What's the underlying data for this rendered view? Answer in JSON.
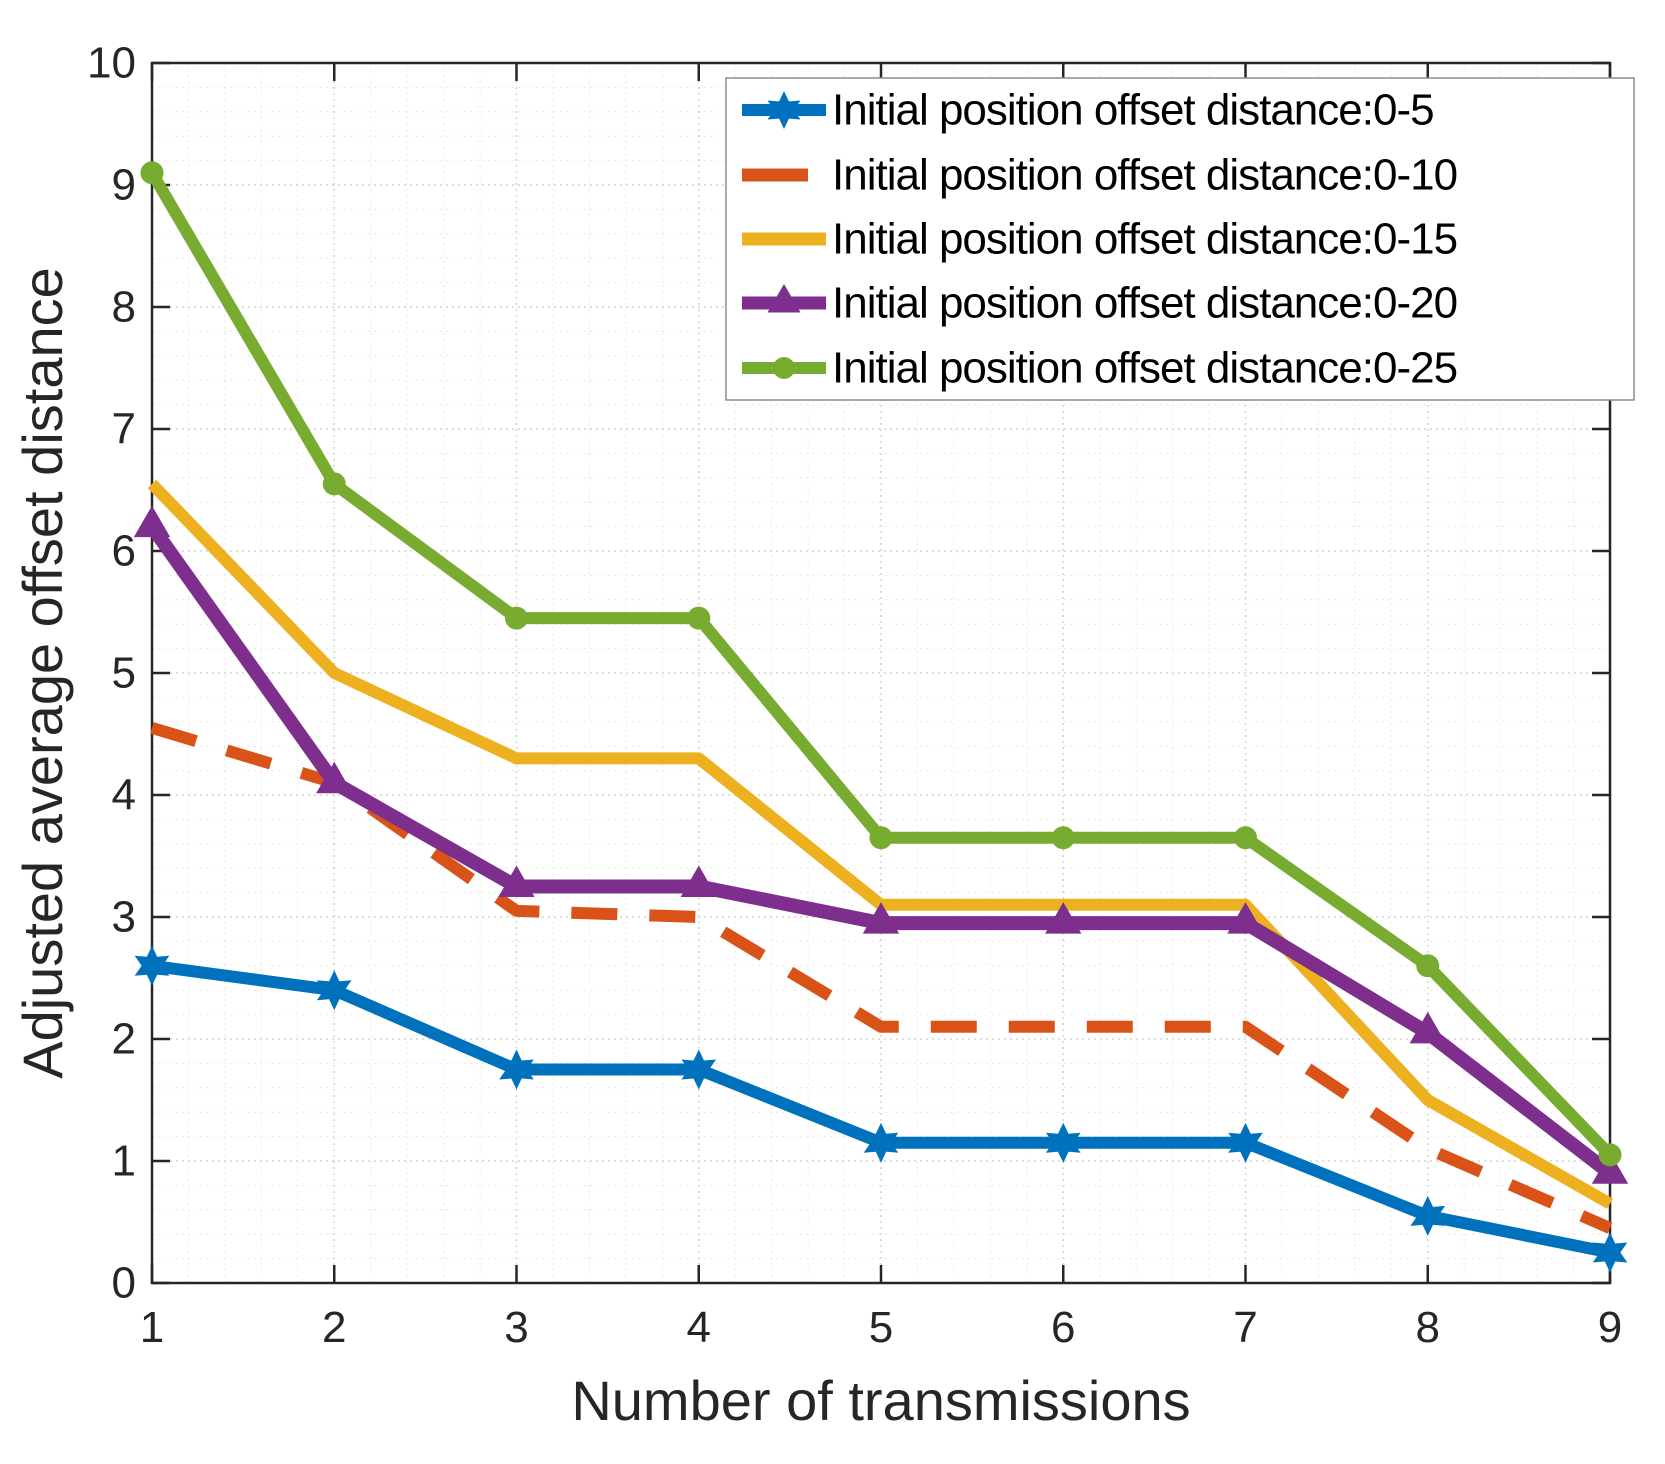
{
  "figure": {
    "background": "#ffffff",
    "axis_color": "#262626",
    "grid_major_color": "#d4d4d4",
    "grid_minor_color": "#e9e9e9"
  },
  "chart_data": {
    "type": "line",
    "title": "",
    "xlabel": "Number of transmissions",
    "ylabel": "Adjusted average offset distance",
    "xlim": [
      1,
      9
    ],
    "ylim": [
      0,
      10
    ],
    "x": [
      1,
      2,
      3,
      4,
      5,
      6,
      7,
      8,
      9
    ],
    "x_tick_labels": [
      "1",
      "2",
      "3",
      "4",
      "5",
      "6",
      "7",
      "8",
      "9"
    ],
    "y_ticks": [
      0,
      1,
      2,
      3,
      4,
      5,
      6,
      7,
      8,
      9,
      10
    ],
    "y_tick_labels": [
      "0",
      "1",
      "2",
      "3",
      "4",
      "5",
      "6",
      "7",
      "8",
      "9",
      "10"
    ],
    "grid": "major and minor dotted, minor step 0.2",
    "legend_position": "top-right",
    "series": [
      {
        "name": "Initial position offset distance:0-5",
        "color": "#0072BD",
        "marker": "hexagram",
        "line": "solid",
        "values": [
          2.6,
          2.4,
          1.75,
          1.75,
          1.15,
          1.15,
          1.15,
          0.55,
          0.25
        ]
      },
      {
        "name": "Initial position offset distance:0-10",
        "color": "#D95319",
        "marker": "none",
        "line": "dashed",
        "values": [
          4.55,
          4.1,
          3.05,
          3.0,
          2.1,
          2.1,
          2.1,
          1.1,
          0.45
        ]
      },
      {
        "name": "Initial position offset distance:0-15",
        "color": "#EDB120",
        "marker": "none",
        "line": "solid",
        "values": [
          6.55,
          5.0,
          4.3,
          4.3,
          3.1,
          3.1,
          3.1,
          1.5,
          0.65
        ]
      },
      {
        "name": "Initial position offset distance:0-20",
        "color": "#7E2F8E",
        "marker": "triangle",
        "line": "solid",
        "values": [
          6.2,
          4.1,
          3.25,
          3.25,
          2.95,
          2.95,
          2.95,
          2.05,
          0.9
        ]
      },
      {
        "name": "Initial position offset distance:0-25",
        "color": "#77AC30",
        "marker": "circle",
        "line": "solid",
        "values": [
          9.1,
          6.55,
          5.45,
          5.45,
          3.65,
          3.65,
          3.65,
          2.6,
          1.05
        ]
      }
    ]
  }
}
